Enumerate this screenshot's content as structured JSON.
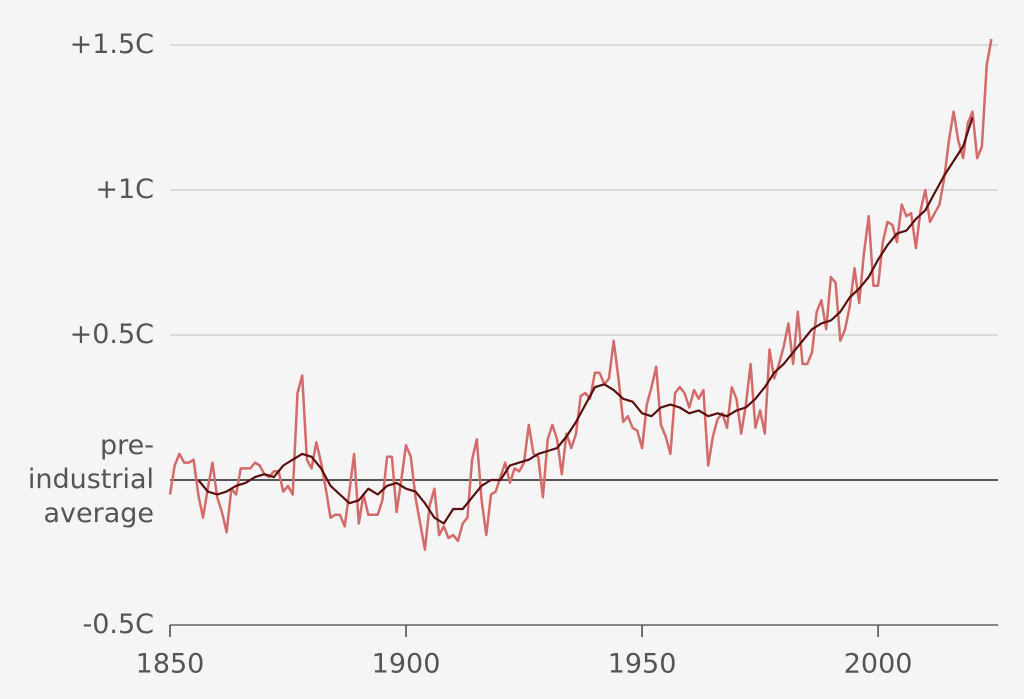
{
  "chart_data": {
    "type": "line",
    "xlim": [
      1850,
      2025.4
    ],
    "ylim": [
      -0.5,
      1.55
    ],
    "xticks": [
      1850,
      1900,
      1950,
      2000
    ],
    "yticks": [
      {
        "value": -0.5,
        "label": "-0.5C"
      },
      {
        "value": 0,
        "label": "pre-industrial average"
      },
      {
        "value": 0.5,
        "label": "+0.5C"
      },
      {
        "value": 1,
        "label": "+1C"
      },
      {
        "value": 1.5,
        "label": "+1.5C"
      }
    ],
    "grid": true,
    "series": [
      {
        "color": "#d46a6a",
        "x": [
          1850,
          1851,
          1852,
          1853,
          1854,
          1855,
          1856,
          1857,
          1858,
          1859,
          1860,
          1861,
          1862,
          1863,
          1864,
          1865,
          1866,
          1867,
          1868,
          1869,
          1870,
          1871,
          1872,
          1873,
          1874,
          1875,
          1876,
          1877,
          1878,
          1879,
          1880,
          1881,
          1882,
          1883,
          1884,
          1885,
          1886,
          1887,
          1888,
          1889,
          1890,
          1891,
          1892,
          1893,
          1894,
          1895,
          1896,
          1897,
          1898,
          1899,
          1900,
          1901,
          1902,
          1903,
          1904,
          1905,
          1906,
          1907,
          1908,
          1909,
          1910,
          1911,
          1912,
          1913,
          1914,
          1915,
          1916,
          1917,
          1918,
          1919,
          1920,
          1921,
          1922,
          1923,
          1924,
          1925,
          1926,
          1927,
          1928,
          1929,
          1930,
          1931,
          1932,
          1933,
          1934,
          1935,
          1936,
          1937,
          1938,
          1939,
          1940,
          1941,
          1942,
          1943,
          1944,
          1945,
          1946,
          1947,
          1948,
          1949,
          1950,
          1951,
          1952,
          1953,
          1954,
          1955,
          1956,
          1957,
          1958,
          1959,
          1960,
          1961,
          1962,
          1963,
          1964,
          1965,
          1966,
          1967,
          1968,
          1969,
          1970,
          1971,
          1972,
          1973,
          1974,
          1975,
          1976,
          1977,
          1978,
          1979,
          1980,
          1981,
          1982,
          1983,
          1984,
          1985,
          1986,
          1987,
          1988,
          1989,
          1990,
          1991,
          1992,
          1993,
          1994,
          1995,
          1996,
          1997,
          1998,
          1999,
          2000,
          2001,
          2002,
          2003,
          2004,
          2005,
          2006,
          2007,
          2008,
          2009,
          2010,
          2011,
          2012,
          2013,
          2014,
          2015,
          2016,
          2017,
          2018,
          2019,
          2020,
          2021,
          2022,
          2023,
          2024
        ],
        "values": [
          -0.05,
          0.05,
          0.09,
          0.06,
          0.06,
          0.07,
          -0.05,
          -0.13,
          -0.03,
          0.06,
          -0.06,
          -0.11,
          -0.18,
          -0.03,
          -0.05,
          0.04,
          0.04,
          0.04,
          0.06,
          0.05,
          0.02,
          0.01,
          0.03,
          0.03,
          -0.04,
          -0.02,
          -0.05,
          0.3,
          0.36,
          0.07,
          0.04,
          0.13,
          0.06,
          -0.03,
          -0.13,
          -0.12,
          -0.12,
          -0.16,
          -0.04,
          0.09,
          -0.15,
          -0.05,
          -0.12,
          -0.12,
          -0.12,
          -0.07,
          0.08,
          0.08,
          -0.11,
          0.0,
          0.12,
          0.08,
          -0.06,
          -0.15,
          -0.24,
          -0.09,
          -0.03,
          -0.19,
          -0.16,
          -0.2,
          -0.19,
          -0.21,
          -0.15,
          -0.13,
          0.07,
          0.14,
          -0.07,
          -0.19,
          -0.05,
          -0.04,
          0.01,
          0.06,
          -0.01,
          0.04,
          0.03,
          0.06,
          0.19,
          0.09,
          0.08,
          -0.06,
          0.14,
          0.19,
          0.14,
          0.02,
          0.16,
          0.11,
          0.16,
          0.29,
          0.3,
          0.28,
          0.37,
          0.37,
          0.33,
          0.35,
          0.48,
          0.35,
          0.2,
          0.22,
          0.18,
          0.17,
          0.11,
          0.26,
          0.32,
          0.39,
          0.19,
          0.15,
          0.09,
          0.3,
          0.32,
          0.3,
          0.25,
          0.31,
          0.28,
          0.31,
          0.05,
          0.15,
          0.21,
          0.23,
          0.18,
          0.32,
          0.28,
          0.16,
          0.26,
          0.4,
          0.18,
          0.24,
          0.16,
          0.45,
          0.35,
          0.4,
          0.46,
          0.54,
          0.4,
          0.58,
          0.4,
          0.4,
          0.44,
          0.58,
          0.62,
          0.52,
          0.7,
          0.68,
          0.48,
          0.52,
          0.6,
          0.73,
          0.61,
          0.78,
          0.91,
          0.67,
          0.67,
          0.82,
          0.89,
          0.88,
          0.82,
          0.95,
          0.91,
          0.92,
          0.8,
          0.93,
          1.0,
          0.89,
          0.92,
          0.95,
          1.04,
          1.17,
          1.27,
          1.17,
          1.11,
          1.23,
          1.27,
          1.11,
          1.15,
          1.43,
          1.52
        ]
      },
      {
        "color": "#5c0f0f",
        "x": [
          1856,
          1858,
          1860,
          1862,
          1864,
          1866,
          1868,
          1870,
          1872,
          1874,
          1876,
          1878,
          1880,
          1882,
          1884,
          1886,
          1888,
          1890,
          1892,
          1894,
          1896,
          1898,
          1900,
          1902,
          1904,
          1906,
          1908,
          1910,
          1912,
          1914,
          1916,
          1918,
          1920,
          1922,
          1924,
          1926,
          1928,
          1930,
          1932,
          1934,
          1936,
          1938,
          1940,
          1942,
          1944,
          1946,
          1948,
          1950,
          1952,
          1954,
          1956,
          1958,
          1960,
          1962,
          1964,
          1966,
          1968,
          1970,
          1972,
          1974,
          1976,
          1978,
          1980,
          1982,
          1984,
          1986,
          1988,
          1990,
          1992,
          1994,
          1996,
          1998,
          2000,
          2002,
          2004,
          2006,
          2008,
          2010,
          2012,
          2014,
          2016,
          2018,
          2020
        ],
        "values": [
          0.0,
          -0.04,
          -0.05,
          -0.04,
          -0.02,
          -0.01,
          0.01,
          0.02,
          0.01,
          0.05,
          0.07,
          0.09,
          0.08,
          0.04,
          -0.02,
          -0.05,
          -0.08,
          -0.07,
          -0.03,
          -0.05,
          -0.02,
          -0.01,
          -0.03,
          -0.04,
          -0.08,
          -0.13,
          -0.15,
          -0.1,
          -0.1,
          -0.06,
          -0.02,
          0.0,
          0.0,
          0.05,
          0.06,
          0.07,
          0.09,
          0.1,
          0.11,
          0.15,
          0.2,
          0.26,
          0.32,
          0.33,
          0.31,
          0.28,
          0.27,
          0.23,
          0.22,
          0.25,
          0.26,
          0.25,
          0.23,
          0.24,
          0.22,
          0.23,
          0.22,
          0.24,
          0.25,
          0.28,
          0.32,
          0.37,
          0.4,
          0.44,
          0.48,
          0.52,
          0.54,
          0.55,
          0.58,
          0.63,
          0.66,
          0.7,
          0.76,
          0.81,
          0.85,
          0.86,
          0.9,
          0.93,
          0.99,
          1.05,
          1.1,
          1.15,
          1.25
        ]
      }
    ]
  }
}
